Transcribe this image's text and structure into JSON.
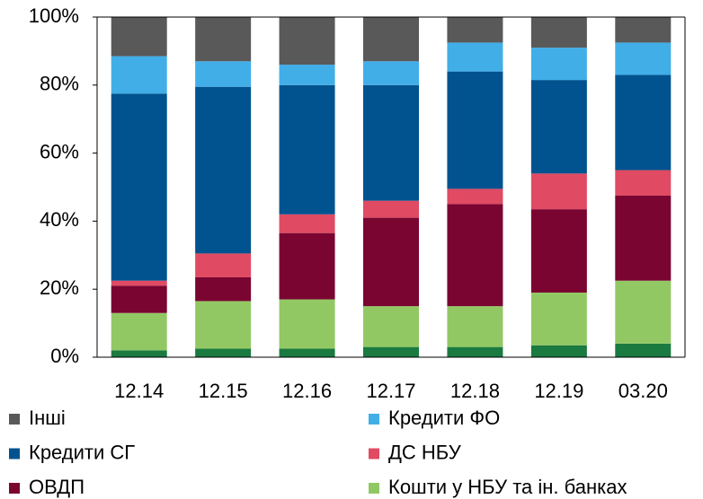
{
  "chart_data": {
    "type": "stacked_bar",
    "categories": [
      "12.14",
      "12.15",
      "12.16",
      "12.17",
      "12.18",
      "12.19",
      "03.20"
    ],
    "series": [
      {
        "color": "#1a7a40",
        "values": [
          2,
          2.5,
          2.5,
          3,
          3,
          3.5,
          4
        ]
      },
      {
        "name": "Кошти у НБУ та ін. банках",
        "color": "#92c864",
        "values": [
          11,
          14,
          14.5,
          12,
          12,
          15.5,
          18.5
        ]
      },
      {
        "name": "ОВДП",
        "color": "#7a0531",
        "values": [
          8,
          7,
          19.5,
          26,
          30,
          24.5,
          25
        ]
      },
      {
        "name": "ДС НБУ",
        "color": "#e04a63",
        "values": [
          1.5,
          7,
          5.5,
          5,
          4.5,
          10.5,
          7.5
        ]
      },
      {
        "name": "Кредити СГ",
        "color": "#00538f",
        "values": [
          55,
          49,
          38,
          34,
          34.5,
          27.5,
          28
        ]
      },
      {
        "name": "Кредити ФО",
        "color": "#41aee8",
        "values": [
          11,
          7.5,
          6,
          7,
          8.5,
          9.5,
          9.5
        ]
      },
      {
        "name": "Інші",
        "color": "#595959",
        "values": [
          11.5,
          13,
          14,
          13,
          7.5,
          9,
          7.5
        ]
      }
    ],
    "ylim": [
      0,
      100
    ],
    "yticks": [
      {
        "value": 0,
        "label": "0%"
      },
      {
        "value": 20,
        "label": "20%"
      },
      {
        "value": 40,
        "label": "40%"
      },
      {
        "value": 60,
        "label": "60%"
      },
      {
        "value": 80,
        "label": "80%"
      },
      {
        "value": 100,
        "label": "100%"
      }
    ],
    "grid": false
  }
}
